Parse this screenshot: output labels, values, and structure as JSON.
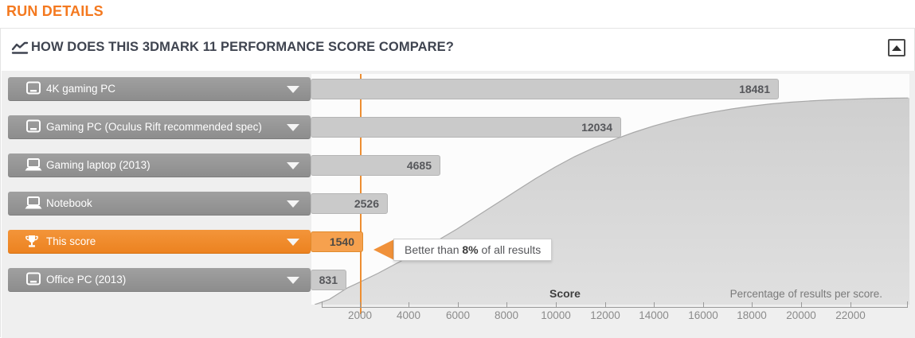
{
  "page": {
    "header": "RUN DETAILS"
  },
  "panel": {
    "title": "HOW DOES THIS 3DMARK 11 PERFORMANCE SCORE COMPARE?"
  },
  "chart_data": {
    "type": "area",
    "title": "HOW DOES THIS 3DMARK 11 PERFORMANCE SCORE COMPARE?",
    "xlabel": "Score",
    "right_label": "Percentage of results per score.",
    "x_ticks": [
      2000,
      4000,
      6000,
      8000,
      10000,
      12000,
      14000,
      16000,
      18000,
      20000,
      22000
    ],
    "x_range": [
      0,
      24400
    ],
    "y_range_pct": [
      0,
      100
    ],
    "this_score": 1540,
    "better_than": {
      "prefix": "Better than ",
      "value": "8%",
      "suffix": " of all results"
    },
    "benchmarks": [
      {
        "label": "4K gaming PC",
        "score": 18481,
        "icon": "desktop-icon",
        "highlight": false
      },
      {
        "label": "Gaming PC (Oculus Rift recommended spec)",
        "score": 12034,
        "icon": "desktop-icon",
        "highlight": false
      },
      {
        "label": "Gaming laptop (2013)",
        "score": 4685,
        "icon": "laptop-icon",
        "highlight": false
      },
      {
        "label": "Notebook",
        "score": 2526,
        "icon": "laptop-icon",
        "highlight": false
      },
      {
        "label": "This score",
        "score": 1540,
        "icon": "trophy-icon",
        "highlight": true
      },
      {
        "label": "Office PC (2013)",
        "score": 831,
        "icon": "desktop-icon",
        "highlight": false
      }
    ],
    "distribution_curve": [
      [
        200,
        0
      ],
      [
        800,
        2.5
      ],
      [
        1540,
        8
      ],
      [
        2000,
        10.5
      ],
      [
        2800,
        15
      ],
      [
        3600,
        20
      ],
      [
        4400,
        25
      ],
      [
        5200,
        30.5
      ],
      [
        6000,
        36
      ],
      [
        6800,
        42
      ],
      [
        7600,
        48
      ],
      [
        8400,
        54
      ],
      [
        9200,
        60
      ],
      [
        10000,
        65.5
      ],
      [
        10800,
        70.5
      ],
      [
        11600,
        74.8
      ],
      [
        12400,
        78.6
      ],
      [
        13200,
        82
      ],
      [
        14000,
        85
      ],
      [
        14800,
        87.6
      ],
      [
        15600,
        89.8
      ],
      [
        16400,
        91.6
      ],
      [
        17200,
        93.2
      ],
      [
        18000,
        94.5
      ],
      [
        18800,
        95.6
      ],
      [
        19600,
        96.4
      ],
      [
        20400,
        97
      ],
      [
        21200,
        97.5
      ],
      [
        22000,
        97.8
      ],
      [
        22800,
        98.1
      ],
      [
        23600,
        98.3
      ],
      [
        24400,
        98.4
      ]
    ]
  },
  "colors": {
    "accent_orange": "#ef8227",
    "header_orange": "#f4791f",
    "bar_gray": "#cacaca",
    "dropdown_gray": "#959595",
    "curve_fill": "#d6d6d6",
    "curve_stroke": "#a8a8a8"
  }
}
